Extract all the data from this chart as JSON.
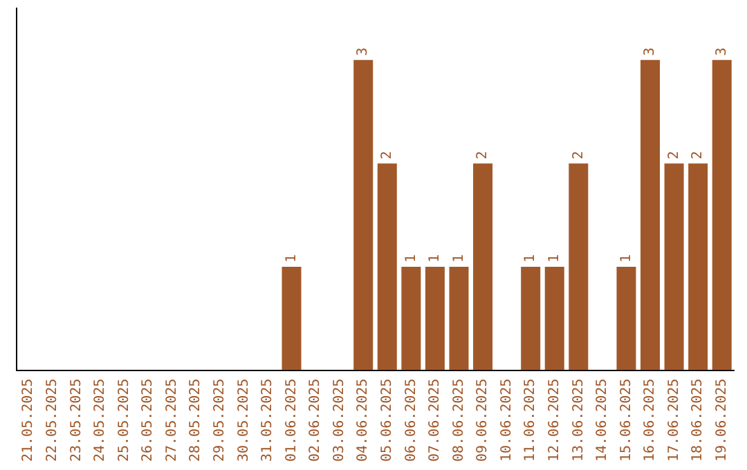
{
  "chart_data": {
    "type": "bar",
    "categories": [
      "21.05.2025",
      "22.05.2025",
      "23.05.2025",
      "24.05.2025",
      "25.05.2025",
      "26.05.2025",
      "27.05.2025",
      "28.05.2025",
      "29.05.2025",
      "30.05.2025",
      "31.05.2025",
      "01.06.2025",
      "02.06.2025",
      "03.06.2025",
      "04.06.2025",
      "05.06.2025",
      "06.06.2025",
      "07.06.2025",
      "08.06.2025",
      "09.06.2025",
      "10.06.2025",
      "11.06.2025",
      "12.06.2025",
      "13.06.2025",
      "14.06.2025",
      "15.06.2025",
      "16.06.2025",
      "17.06.2025",
      "18.06.2025",
      "19.06.2025"
    ],
    "values": [
      null,
      null,
      null,
      null,
      null,
      null,
      null,
      null,
      null,
      null,
      null,
      1,
      null,
      null,
      3,
      2,
      1,
      1,
      1,
      2,
      null,
      1,
      1,
      2,
      null,
      1,
      3,
      2,
      2,
      3
    ],
    "color": "#a0582a",
    "data_labels": true,
    "grid": false,
    "legend": false,
    "tick_labels": "x"
  }
}
